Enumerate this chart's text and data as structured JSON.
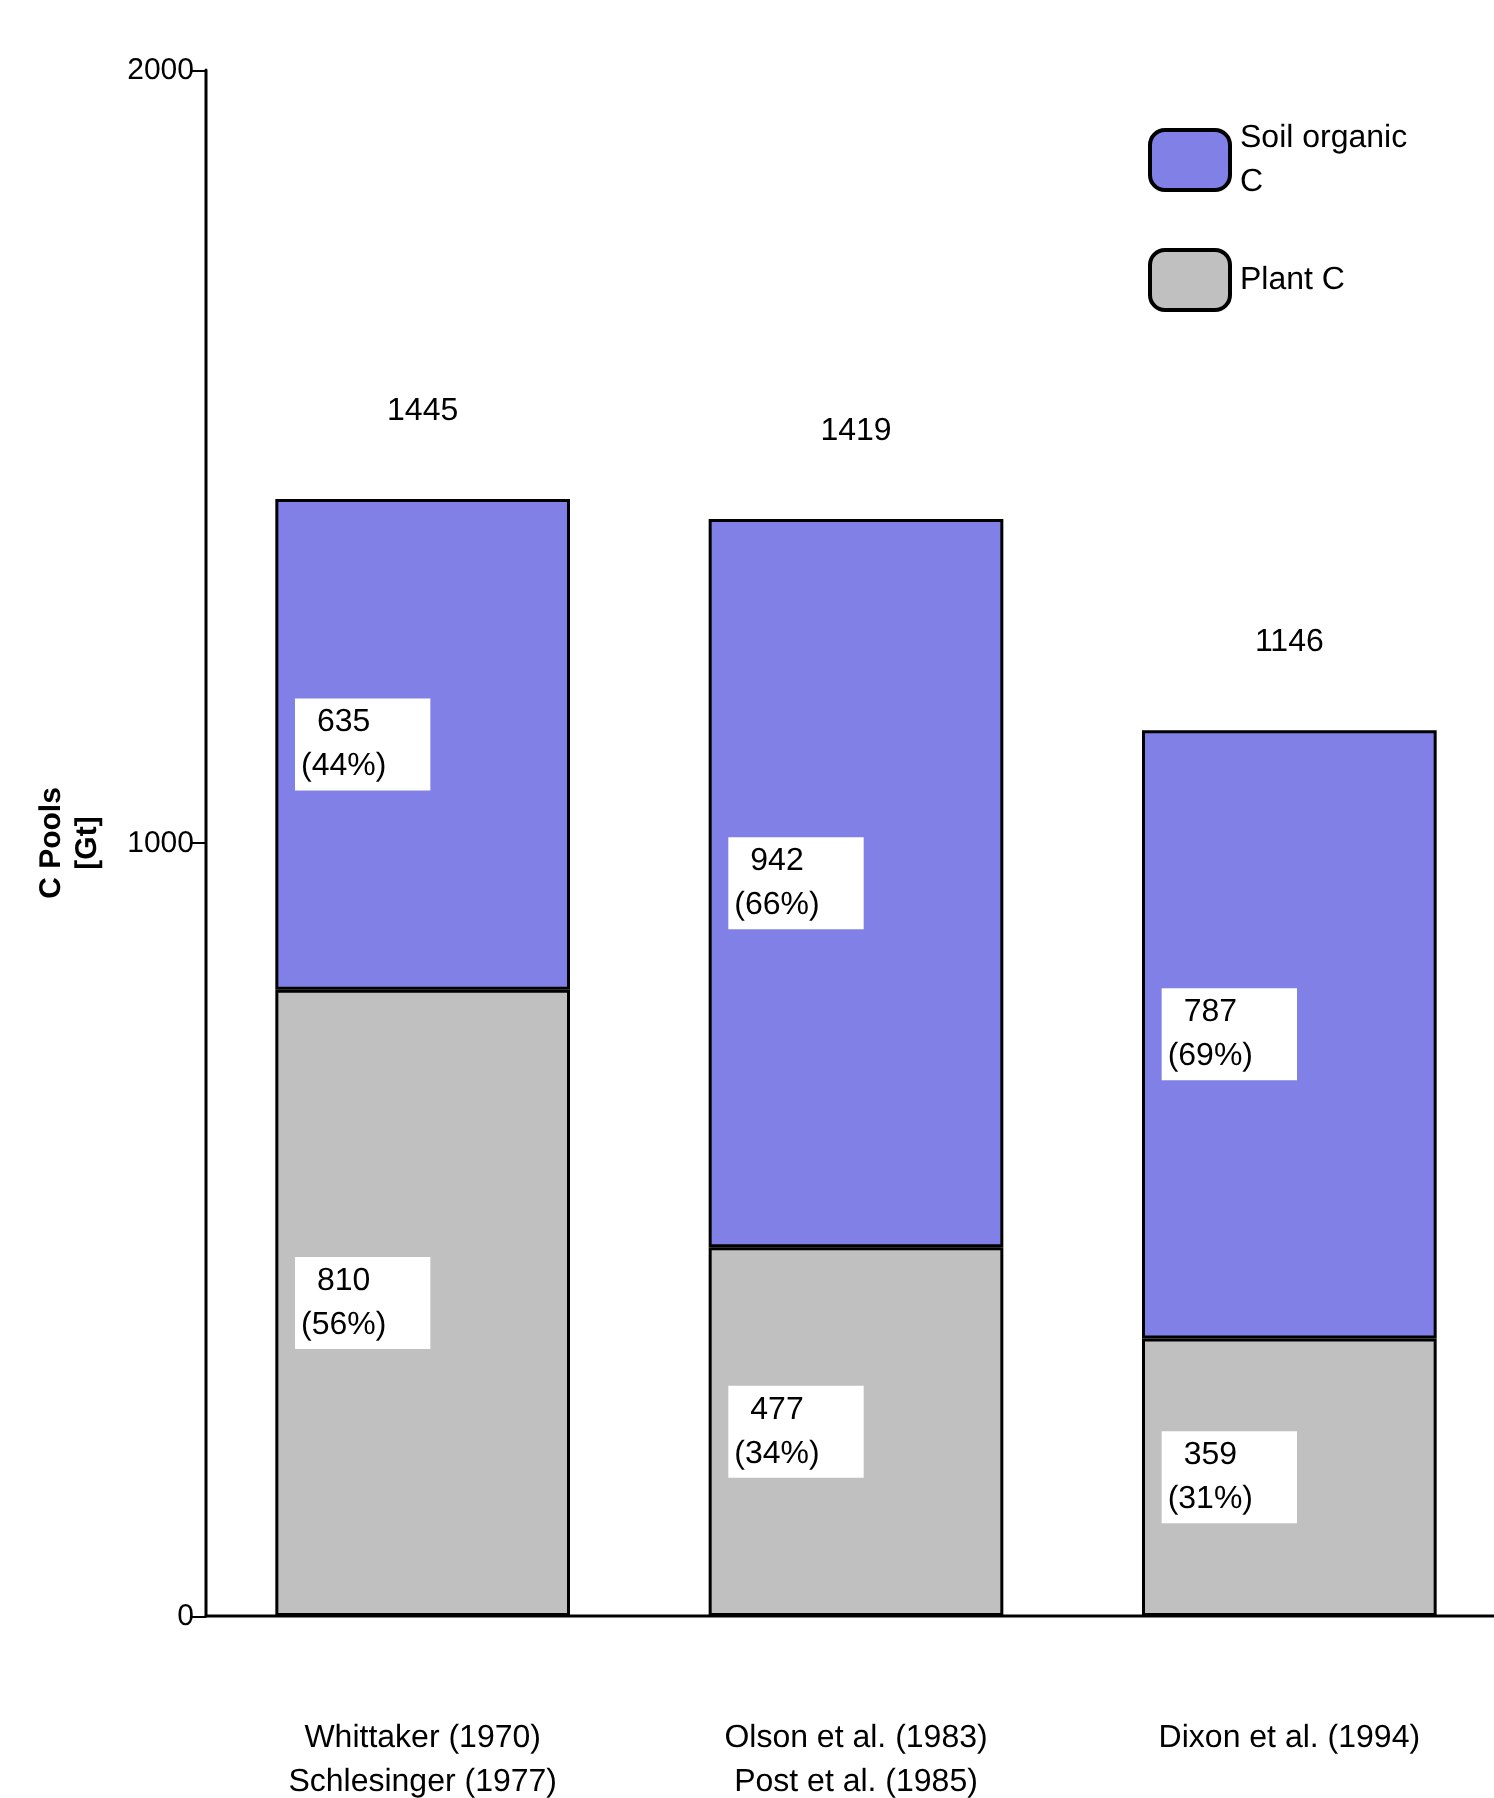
{
  "chart_data": {
    "type": "bar",
    "stacked": true,
    "ylabel": "C Pools\n[Gt]",
    "categories": [
      "Whittaker (1970)\nSchlesinger (1977)",
      "Olson et al. (1983)\nPost et al. (1985)",
      "Dixon et al. (1994)"
    ],
    "series": [
      {
        "name": "Plant C",
        "color": "#c0c0c0",
        "values": [
          810,
          477,
          359
        ],
        "value_labels": [
          "810\n(56%)",
          "477\n(34%)",
          "359\n(31%)"
        ]
      },
      {
        "name": "Soil organic C",
        "color": "#8080e6",
        "values": [
          635,
          942,
          787
        ],
        "value_labels": [
          "635\n(44%)",
          "942\n(66%)",
          "787\n(69%)"
        ]
      }
    ],
    "totals": [
      "1445",
      "1419",
      "1146"
    ],
    "ylim": [
      0,
      2000
    ],
    "yticks": [
      0,
      1000,
      2000
    ],
    "grid": false,
    "legend": "top right"
  }
}
